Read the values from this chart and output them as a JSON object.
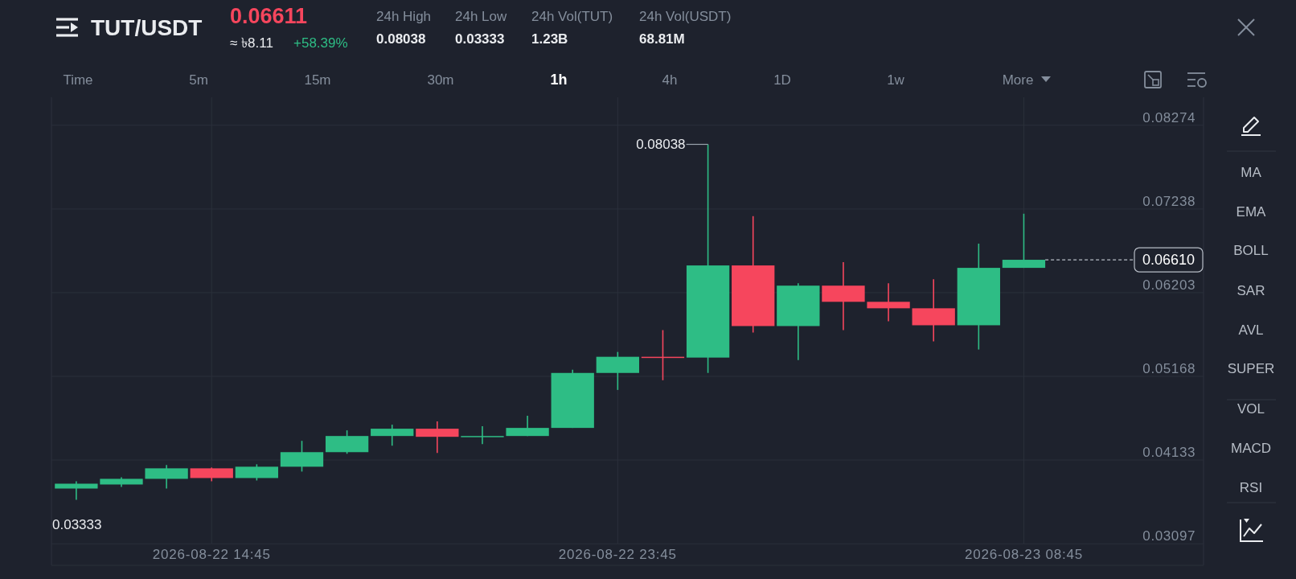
{
  "chart_data": {
    "type": "candlestick",
    "title": "TUT/USDT",
    "x": [
      "2026-08-22T11:45",
      "2026-08-22T12:45",
      "2026-08-22T13:45",
      "2026-08-22T14:45",
      "2026-08-22T15:45",
      "2026-08-22T16:45",
      "2026-08-22T17:45",
      "2026-08-22T18:45",
      "2026-08-22T19:45",
      "2026-08-22T20:45",
      "2026-08-22T21:45",
      "2026-08-22T22:45",
      "2026-08-22T23:45",
      "2026-08-23T00:45",
      "2026-08-23T01:45",
      "2026-08-23T02:45",
      "2026-08-23T03:45",
      "2026-08-23T04:45",
      "2026-08-23T05:45",
      "2026-08-23T06:45",
      "2026-08-23T07:45",
      "2026-08-23T08:45"
    ],
    "ohlc": [
      [
        0.0378,
        0.0387,
        0.0364,
        0.0384
      ],
      [
        0.0383,
        0.0392,
        0.038,
        0.039
      ],
      [
        0.039,
        0.0407,
        0.0378,
        0.0403
      ],
      [
        0.0403,
        0.0404,
        0.0387,
        0.0391
      ],
      [
        0.0391,
        0.0408,
        0.0388,
        0.0405
      ],
      [
        0.0405,
        0.0437,
        0.0399,
        0.0423
      ],
      [
        0.0423,
        0.045,
        0.0421,
        0.0443
      ],
      [
        0.0443,
        0.0457,
        0.0431,
        0.0452
      ],
      [
        0.0452,
        0.0461,
        0.0422,
        0.0442
      ],
      [
        0.0442,
        0.0455,
        0.0433,
        0.0443
      ],
      [
        0.0443,
        0.0468,
        0.0443,
        0.0453
      ],
      [
        0.0453,
        0.0525,
        0.0453,
        0.0521
      ],
      [
        0.0521,
        0.0547,
        0.05,
        0.0541
      ],
      [
        0.0541,
        0.0574,
        0.0512,
        0.054
      ],
      [
        0.054,
        0.08038,
        0.0521,
        0.0654
      ],
      [
        0.0654,
        0.0715,
        0.0571,
        0.0579
      ],
      [
        0.0579,
        0.0632,
        0.0537,
        0.0629
      ],
      [
        0.0629,
        0.0658,
        0.0574,
        0.0609
      ],
      [
        0.0609,
        0.0632,
        0.0585,
        0.0601
      ],
      [
        0.0601,
        0.0637,
        0.056,
        0.058
      ],
      [
        0.058,
        0.0681,
        0.055,
        0.0651
      ],
      [
        0.0651,
        0.0718,
        0.0651,
        0.0661
      ]
    ],
    "colors": [
      "#2ebd85",
      "#2ebd85",
      "#2ebd85",
      "#f6465d",
      "#2ebd85",
      "#2ebd85",
      "#2ebd85",
      "#2ebd85",
      "#f6465d",
      "#2ebd85",
      "#2ebd85",
      "#2ebd85",
      "#2ebd85",
      "#f6465d",
      "#2ebd85",
      "#f6465d",
      "#2ebd85",
      "#f6465d",
      "#f6465d",
      "#f6465d",
      "#2ebd85",
      "#2ebd85"
    ],
    "xlim": [
      "2026-08-22T11:12",
      "2026-08-23T12:44"
    ],
    "xticks": [
      {
        "value": "2026-08-22T14:45",
        "label": "2026-08-22 14:45"
      },
      {
        "value": "2026-08-22T23:45",
        "label": "2026-08-22 23:45"
      },
      {
        "value": "2026-08-23T08:45",
        "label": "2026-08-23 08:45"
      }
    ],
    "ylim": [
      0.0283,
      0.0862
    ],
    "yticks": [
      0.03097,
      0.04133,
      0.05168,
      0.06203,
      0.07238,
      0.08274
    ],
    "grid": true,
    "ref_lines": [
      {
        "axis": "y",
        "value": 0.0661,
        "label": "0.06610",
        "line_style": "dashed",
        "color": "#b7bdc6"
      }
    ],
    "annotations": [
      "0.06611",
      "≈ ৳8.11",
      "+58.39%",
      "24h High",
      "0.08038",
      "24h Low",
      "0.03333",
      "24h Vol(TUT)",
      "1.23B",
      "24h Vol(USDT)",
      "68.81M",
      "Time",
      "5m",
      "15m",
      "30m",
      "1h",
      "4h",
      "1D",
      "1w",
      "More",
      "MA",
      "EMA",
      "BOLL",
      "SAR",
      "AVL",
      "SUPER",
      "VOL",
      "MACD",
      "RSI",
      {
        "text": "0.08038",
        "x": "2026-08-23T01:45",
        "y": 0.08038
      },
      "0.03333"
    ]
  }
}
